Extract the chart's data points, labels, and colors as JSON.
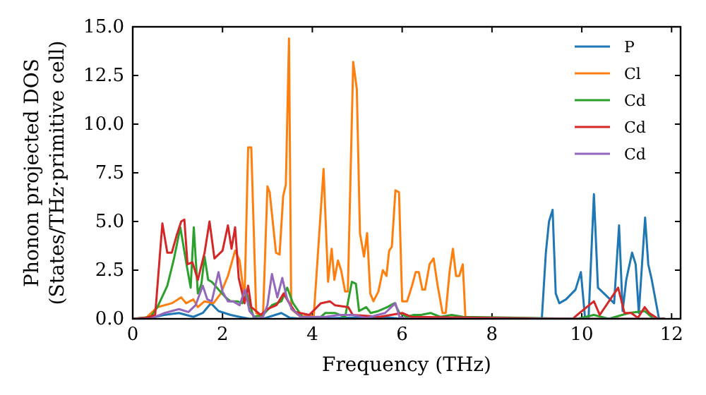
{
  "chart_data": {
    "type": "line",
    "xlabel": "Frequency (THz)",
    "ylabel": "Phonon projected DOS\n(States/THz·primitive cell)",
    "xlim": [
      0,
      12.2
    ],
    "ylim": [
      0,
      15
    ],
    "xticks": [
      0,
      2,
      4,
      6,
      8,
      10,
      12
    ],
    "yticks": [
      {
        "value": 0,
        "label": "0.0"
      },
      {
        "value": 2.5,
        "label": "2.5"
      },
      {
        "value": 5,
        "label": "5.0"
      },
      {
        "value": 7.5,
        "label": "7.5"
      },
      {
        "value": 10,
        "label": "10.0"
      },
      {
        "value": 12.5,
        "label": "12.5"
      },
      {
        "value": 15,
        "label": "15.0"
      }
    ],
    "legend": "top right",
    "grid": false,
    "marker": "none",
    "line_style": "solid",
    "series": [
      {
        "name": "P",
        "color": "#1f77b4",
        "x": [
          0,
          0.3,
          0.7,
          1.03,
          1.35,
          1.56,
          1.74,
          1.91,
          2.18,
          2.38,
          2.6,
          2.9,
          3.31,
          3.5,
          3.8,
          5.57,
          6,
          9.11,
          9.2,
          9.27,
          9.35,
          9.42,
          9.5,
          9.65,
          9.86,
          9.98,
          10.07,
          10.15,
          10.27,
          10.36,
          10.54,
          10.72,
          10.83,
          10.91,
          10.99,
          11.12,
          11.2,
          11.27,
          11.41,
          11.48,
          11.55,
          11.72,
          11.85
        ],
        "values": [
          0,
          0,
          0.2,
          0.3,
          0.1,
          0.3,
          0.8,
          0.4,
          0.2,
          0.1,
          0,
          0,
          0.3,
          0.05,
          0,
          0.1,
          0,
          0,
          3.4,
          5,
          5.6,
          1.3,
          0.8,
          1,
          1.5,
          2.4,
          0.1,
          0,
          6.4,
          1.6,
          1.2,
          0.8,
          4.8,
          0.4,
          2,
          3.4,
          2.8,
          0.3,
          5.2,
          2.8,
          2.1,
          0,
          0
        ]
      },
      {
        "name": "Cl",
        "color": "#ff7f0e",
        "x": [
          0,
          0.3,
          0.55,
          0.87,
          1.08,
          1.19,
          1.35,
          1.45,
          1.6,
          1.8,
          1.96,
          2.12,
          2.28,
          2.38,
          2.49,
          2.57,
          2.64,
          2.75,
          2.9,
          3,
          3.05,
          3.19,
          3.27,
          3.35,
          3.41,
          3.48,
          3.53,
          3.74,
          3.93,
          4.03,
          4.25,
          4.35,
          4.43,
          4.49,
          4.57,
          4.64,
          4.73,
          4.79,
          4.91,
          4.99,
          5.06,
          5.15,
          5.22,
          5.29,
          5.36,
          5.47,
          5.57,
          5.65,
          5.71,
          5.77,
          5.85,
          5.93,
          6,
          6.11,
          6.22,
          6.3,
          6.37,
          6.45,
          6.51,
          6.61,
          6.7,
          6.79,
          6.9,
          6.97,
          7.06,
          7.13,
          7.2,
          7.27,
          7.35,
          7.41,
          11.85
        ],
        "values": [
          0,
          0.05,
          0.6,
          0.8,
          1.1,
          0.8,
          1,
          0.6,
          0.9,
          0.8,
          1.3,
          2.2,
          3.5,
          3,
          1,
          8.8,
          8.8,
          0.3,
          0.05,
          6.8,
          6.5,
          3.4,
          3.3,
          6.3,
          6.9,
          14.4,
          0.5,
          0.1,
          0.2,
          0.1,
          7.7,
          1.9,
          3.6,
          2,
          3,
          2.5,
          1.4,
          1.4,
          13.2,
          11.8,
          4.4,
          3.2,
          4.4,
          1.3,
          0.9,
          1.4,
          2.5,
          2.2,
          3.5,
          3.7,
          6.6,
          6.5,
          0.9,
          0.9,
          1.7,
          2.4,
          2.4,
          1.5,
          1.5,
          2.8,
          3.1,
          1.7,
          0.3,
          0.3,
          2.5,
          3.6,
          2.2,
          2.2,
          2.8,
          0,
          0
        ]
      },
      {
        "name": "Cd",
        "color": "#2ca02c",
        "x": [
          0,
          0.4,
          0.55,
          0.77,
          0.92,
          1.06,
          1.19,
          1.29,
          1.36,
          1.45,
          1.53,
          1.6,
          1.68,
          1.76,
          1.91,
          2.07,
          2.18,
          2.33,
          2.44,
          2.54,
          2.6,
          2.69,
          2.9,
          3.1,
          3.31,
          3.44,
          3.57,
          3.78,
          4.14,
          4.29,
          4.5,
          4.73,
          4.88,
          4.97,
          5.04,
          5.2,
          5.3,
          5.47,
          5.67,
          5.83,
          5.94,
          6.1,
          6.26,
          6.42,
          6.63,
          6.85,
          7.1,
          7.36,
          9.9,
          10.27,
          10.6,
          11.05,
          11.4,
          11.6,
          11.85
        ],
        "values": [
          0,
          0.1,
          0.6,
          1.7,
          3.1,
          4.7,
          2.9,
          1.6,
          4.7,
          1.3,
          1.8,
          3.2,
          2,
          1.9,
          1.5,
          1.1,
          0.9,
          0.9,
          0.8,
          1.3,
          0.8,
          0.1,
          0.2,
          0.7,
          0.9,
          1.6,
          0.8,
          0.1,
          0,
          0.3,
          0.3,
          0.1,
          1.9,
          1.8,
          0.4,
          0.6,
          0.3,
          0.4,
          0.6,
          0.8,
          0.3,
          0.1,
          0.2,
          0.2,
          0.3,
          0.1,
          0.2,
          0.1,
          0,
          0.2,
          0,
          0.3,
          0.4,
          0,
          0
        ]
      },
      {
        "name": "Cd",
        "color": "#d62728",
        "x": [
          0,
          0.3,
          0.5,
          0.66,
          0.77,
          0.87,
          0.98,
          1.08,
          1.15,
          1.22,
          1.33,
          1.45,
          1.6,
          1.71,
          1.82,
          2,
          2.12,
          2.2,
          2.28,
          2.36,
          2.49,
          2.57,
          2.64,
          2.85,
          3,
          3.2,
          3.36,
          3.46,
          3.62,
          3.93,
          4.19,
          4.39,
          4.5,
          4.8,
          4.9,
          5.5,
          6,
          6.2,
          9.8,
          9.95,
          10.27,
          10.4,
          10.81,
          10.95,
          11.1,
          11.25,
          11.4,
          11.5,
          11.7,
          11.85
        ],
        "values": [
          0,
          0.05,
          0.2,
          4.9,
          3.4,
          3.4,
          4.3,
          5,
          5.1,
          2.8,
          2.9,
          2,
          3.4,
          5,
          3.1,
          3.5,
          4.8,
          3.6,
          4.7,
          2.1,
          0.8,
          1.7,
          0.6,
          0.2,
          0.5,
          0.7,
          1.3,
          0.9,
          0.35,
          0.2,
          0.8,
          0.9,
          0.7,
          0.6,
          0.2,
          0.1,
          0.3,
          0.1,
          0,
          0.3,
          0.9,
          0.2,
          1.6,
          0.3,
          0.3,
          0.05,
          0.6,
          0.3,
          0,
          0
        ]
      },
      {
        "name": "Cd",
        "color": "#9467bd",
        "x": [
          0,
          0.4,
          0.71,
          1.03,
          1.24,
          1.4,
          1.56,
          1.66,
          1.76,
          1.91,
          2,
          2.12,
          2.23,
          2.38,
          2.5,
          2.6,
          2.75,
          2.9,
          3,
          3.1,
          3.22,
          3.33,
          3.43,
          3.54,
          3.75,
          4.29,
          4.6,
          4.9,
          5.2,
          5.62,
          5.85,
          5.94,
          6.1,
          11.85
        ],
        "values": [
          0,
          0,
          0.3,
          0.5,
          0.35,
          0.7,
          1.7,
          1,
          0.9,
          2.4,
          1.4,
          0.9,
          0.9,
          0.7,
          1.5,
          0.4,
          0,
          0.1,
          0.7,
          2.3,
          1.1,
          2.1,
          1.1,
          0.5,
          0.1,
          0.1,
          0.2,
          0.2,
          0.05,
          0.3,
          0.8,
          0.1,
          0,
          0
        ]
      }
    ]
  }
}
